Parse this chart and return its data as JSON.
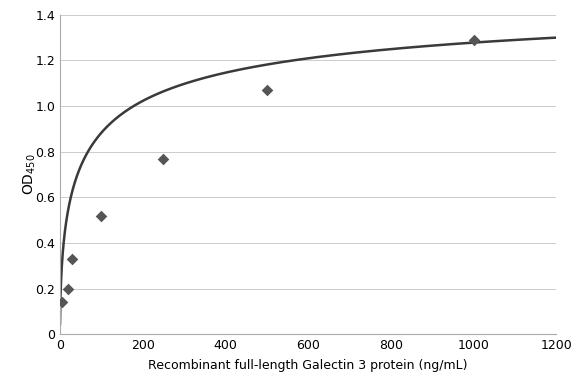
{
  "scatter_x": [
    5,
    20,
    30,
    100,
    250,
    500,
    1000
  ],
  "scatter_y": [
    0.14,
    0.2,
    0.33,
    0.52,
    0.77,
    1.07,
    1.29
  ],
  "curve_color": "#3a3a3a",
  "marker_color": "#555555",
  "marker_size": 35,
  "xlabel": "Recombinant full-length Galectin 3 protein (ng/mL)",
  "xlim": [
    0,
    1200
  ],
  "ylim": [
    0,
    1.4
  ],
  "xticks": [
    0,
    200,
    400,
    600,
    800,
    1000,
    1200
  ],
  "yticks": [
    0,
    0.2,
    0.4,
    0.6,
    0.8,
    1.0,
    1.2,
    1.4
  ],
  "background_color": "#ffffff",
  "grid_color": "#cccccc",
  "curve_Vmax": 1.55,
  "curve_Km": 60,
  "curve_n": 0.55
}
